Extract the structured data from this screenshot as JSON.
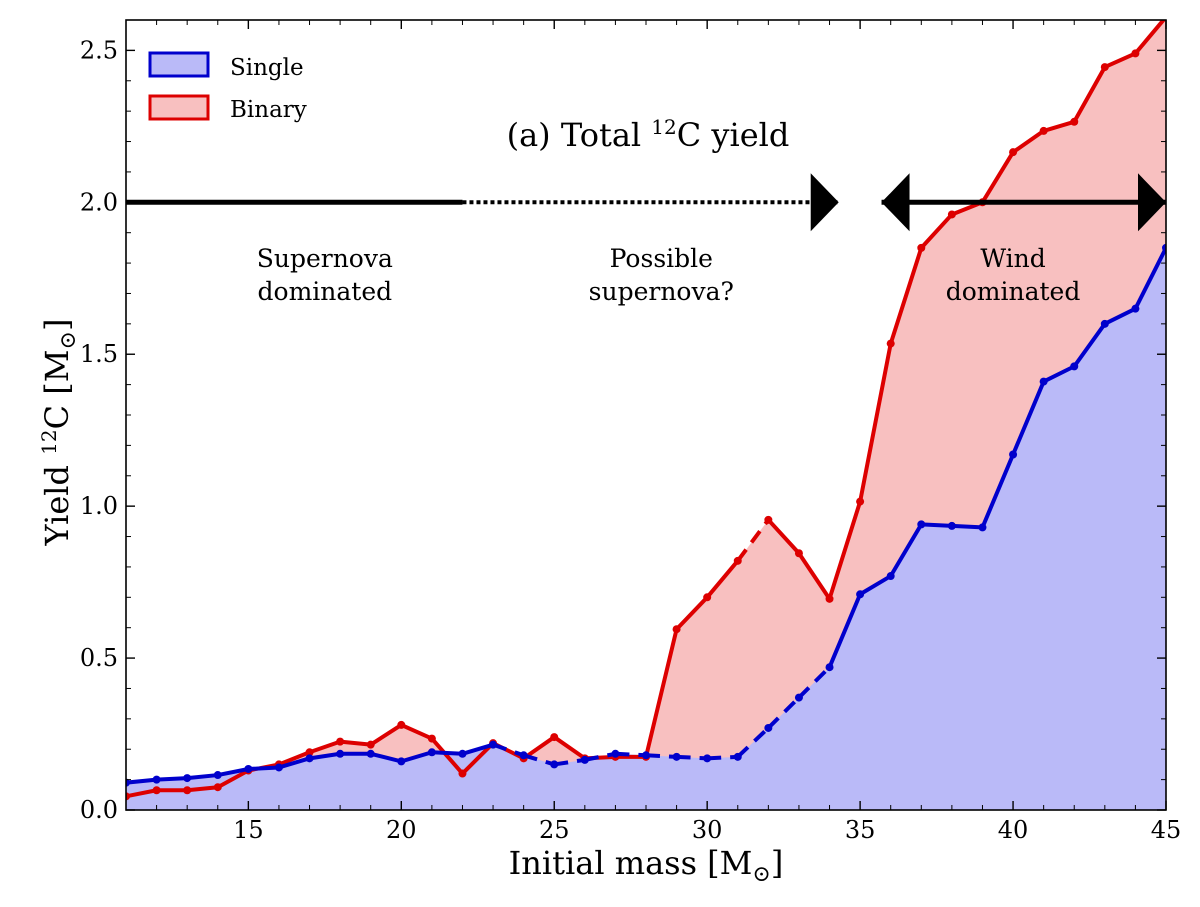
{
  "chart_data": {
    "type": "area",
    "title_prefix": "(a) Total ",
    "title_sup": "12",
    "title_suffix": "C yield",
    "xlabel": "Initial mass [M",
    "xlabel_sub": "⊙",
    "xlabel_end": "]",
    "ylabel": "Yield ",
    "ylabel_sup": "12",
    "ylabel_mid": "C [M",
    "ylabel_sub": "⊙",
    "ylabel_end": "]",
    "xlim": [
      11,
      45
    ],
    "ylim": [
      0,
      2.6
    ],
    "xticks": [
      15,
      20,
      25,
      30,
      35,
      40,
      45
    ],
    "yticks": [
      0.0,
      0.5,
      1.0,
      1.5,
      2.0,
      2.5
    ],
    "ytick_labels": [
      "0.0",
      "0.5",
      "1.0",
      "1.5",
      "2.0",
      "2.5"
    ],
    "legend_placement": "top-left",
    "series": [
      {
        "name": "Single",
        "line_color": "#0000cc",
        "fill_color": "#babaf8",
        "x": [
          11,
          12,
          13,
          14,
          15,
          16,
          17,
          18,
          19,
          20,
          21,
          22,
          23,
          24,
          25,
          26,
          27,
          28,
          29,
          30,
          31,
          32,
          33,
          34,
          35,
          36,
          37,
          38,
          39,
          40,
          41,
          42,
          43,
          44,
          45
        ],
        "y": [
          0.09,
          0.1,
          0.105,
          0.115,
          0.135,
          0.14,
          0.17,
          0.185,
          0.185,
          0.16,
          0.19,
          0.185,
          0.215,
          0.18,
          0.15,
          0.165,
          0.185,
          0.18,
          0.175,
          0.17,
          0.175,
          0.27,
          0.37,
          0.47,
          0.71,
          0.77,
          0.94,
          0.935,
          0.93,
          1.17,
          1.41,
          1.46,
          1.6,
          1.65,
          1.85
        ],
        "dashed_x_range": [
          23,
          34
        ]
      },
      {
        "name": "Binary",
        "line_color": "#dd0000",
        "fill_color": "#f8c0c0",
        "x": [
          11,
          12,
          13,
          14,
          15,
          16,
          17,
          18,
          19,
          20,
          21,
          22,
          23,
          24,
          25,
          26,
          27,
          28,
          29,
          30,
          31,
          32,
          33,
          34,
          35,
          36,
          37,
          38,
          39,
          40,
          41,
          42,
          43,
          44,
          45
        ],
        "y": [
          0.045,
          0.065,
          0.065,
          0.075,
          0.13,
          0.15,
          0.19,
          0.225,
          0.215,
          0.28,
          0.235,
          0.12,
          0.22,
          0.17,
          0.24,
          0.17,
          0.175,
          0.175,
          0.595,
          0.7,
          0.82,
          0.955,
          0.845,
          0.695,
          1.015,
          1.535,
          1.85,
          1.96,
          2.0,
          2.165,
          2.235,
          2.265,
          2.445,
          2.49,
          2.61
        ],
        "dashed_x_range": [
          31,
          32
        ]
      }
    ],
    "regions": [
      {
        "label_lines": [
          "Supernova",
          "dominated"
        ],
        "x_from": 11,
        "x_to": 22,
        "style": "solid",
        "label_x": 17.5
      },
      {
        "label_lines": [
          "Possible",
          "supernova?"
        ],
        "x_from": 22,
        "x_to": 34.3,
        "style": "dotted",
        "label_x": 28.5
      },
      {
        "label_lines": [
          "Wind",
          "dominated"
        ],
        "x_from": 35.7,
        "x_to": 45,
        "style": "solid",
        "label_x": 40
      }
    ],
    "region_line_y": 2.0
  }
}
